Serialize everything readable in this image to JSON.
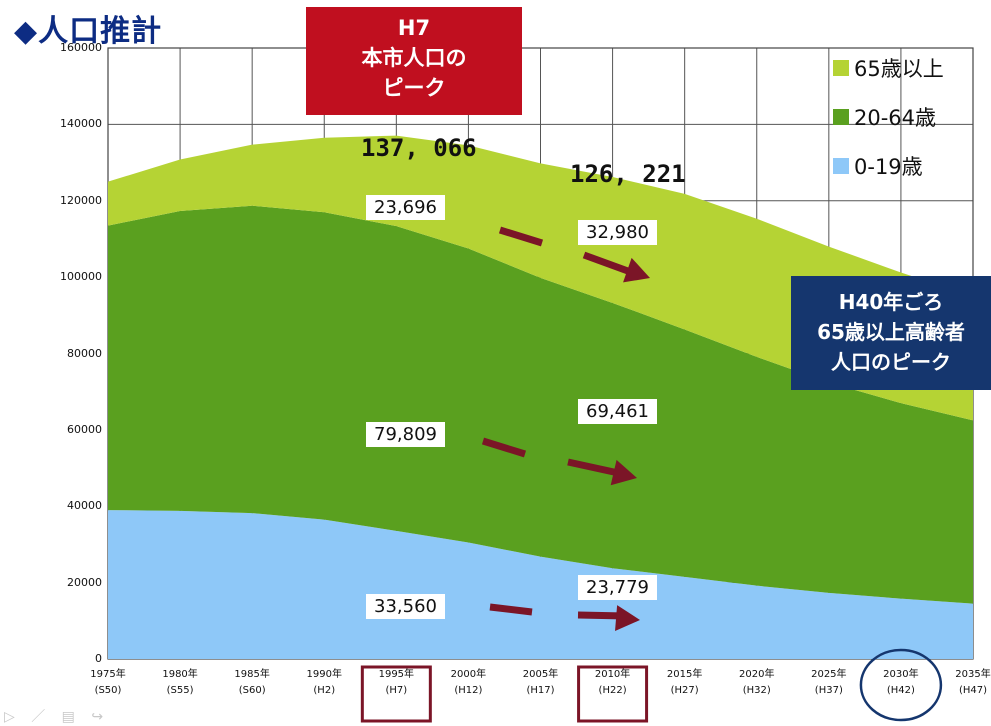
{
  "title": "◆人口推計",
  "callouts": {
    "peak_population": [
      "H7",
      "本市人口の",
      "ピーク"
    ],
    "elderly_peak": [
      "H40年ごろ",
      "65歳以上高齢者",
      "人口のピーク"
    ]
  },
  "annotations": {
    "total_1995": "137, 066",
    "total_2010": "126, 221",
    "old_1995": "23,696",
    "old_2010": "32,980",
    "mid_1995": "79,809",
    "mid_2010": "69,461",
    "young_1995": "33,560",
    "young_2010": "23,779"
  },
  "colors": {
    "age65": "#b5d334",
    "age20_64": "#5aa01f",
    "age0_19": "#8ec8f8",
    "arrow": "#7b1527",
    "highlight_red": "#7b1527",
    "highlight_blue": "#15366e"
  },
  "chart_data": {
    "type": "area",
    "stacked": true,
    "categories": [
      "1975年(S50)",
      "1980年(S55)",
      "1985年(S60)",
      "1990年(H2)",
      "1995年(H7)",
      "2000年(H12)",
      "2005年(H17)",
      "2010年(H22)",
      "2015年(H27)",
      "2020年(H32)",
      "2025年(H37)",
      "2030年(H42)",
      "2035年(H47)"
    ],
    "x_labels": [
      [
        "1975年",
        "(S50)"
      ],
      [
        "1980年",
        "(S55)"
      ],
      [
        "1985年",
        "(S60)"
      ],
      [
        "1990年",
        "(H2)"
      ],
      [
        "1995年",
        "(H7)"
      ],
      [
        "2000年",
        "(H12)"
      ],
      [
        "2005年",
        "(H17)"
      ],
      [
        "2010年",
        "(H22)"
      ],
      [
        "2015年",
        "(H27)"
      ],
      [
        "2020年",
        "(H32)"
      ],
      [
        "2025年",
        "(H37)"
      ],
      [
        "2030年",
        "(H42)"
      ],
      [
        "2035年",
        "(H47)"
      ]
    ],
    "series": [
      {
        "name": "0-19歳",
        "values": [
          39000,
          38800,
          38200,
          36500,
          33560,
          30500,
          26800,
          23779,
          21500,
          19200,
          17300,
          15800,
          14500
        ]
      },
      {
        "name": "20-64歳",
        "values": [
          74500,
          78500,
          80500,
          80500,
          79809,
          77000,
          73000,
          69461,
          64800,
          59900,
          55100,
          51200,
          48000
        ]
      },
      {
        "name": "65歳以上",
        "values": [
          11500,
          13500,
          16000,
          19500,
          23696,
          27000,
          30000,
          32980,
          35500,
          36200,
          35600,
          34200,
          32500
        ]
      }
    ],
    "legend_order": [
      "65歳以上",
      "20-64歳",
      "0-19歳"
    ],
    "y_ticks": [
      0,
      20000,
      40000,
      60000,
      80000,
      100000,
      120000,
      140000,
      160000
    ],
    "ylim": [
      0,
      160000
    ],
    "grid": true,
    "legend": "top-right"
  }
}
